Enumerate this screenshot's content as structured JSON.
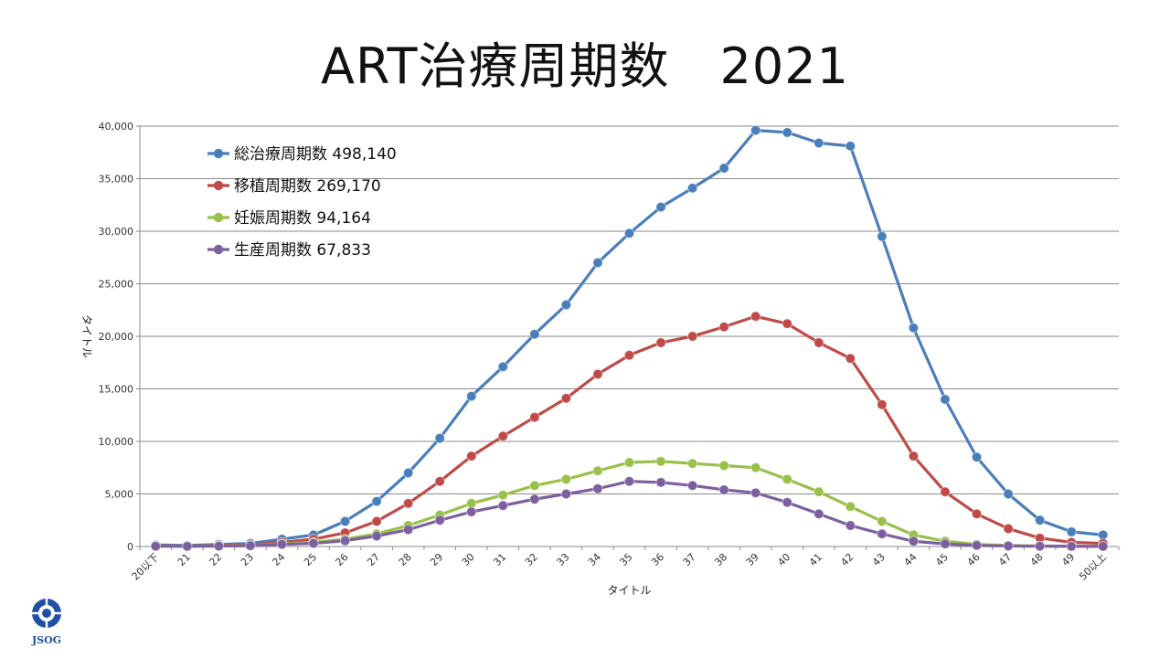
{
  "title": "ART治療周期数　2021",
  "logo_text": "JSOG",
  "chart_data": {
    "type": "line",
    "xlabel": "タイトル",
    "ylabel": "タイトル",
    "ylim": [
      0,
      40000
    ],
    "yticks": [
      0,
      5000,
      10000,
      15000,
      20000,
      25000,
      30000,
      35000,
      40000
    ],
    "ytick_labels": [
      "0",
      "5,000",
      "10,000",
      "15,000",
      "20,000",
      "25,000",
      "30,000",
      "35,000",
      "40,000"
    ],
    "grid": true,
    "legend_position": "top-left",
    "categories": [
      "20以下",
      "21",
      "22",
      "23",
      "24",
      "25",
      "26",
      "27",
      "28",
      "29",
      "30",
      "31",
      "32",
      "33",
      "34",
      "35",
      "36",
      "37",
      "38",
      "39",
      "40",
      "41",
      "42",
      "43",
      "44",
      "45",
      "46",
      "47",
      "48",
      "49",
      "50以上"
    ],
    "series": [
      {
        "name": "総治療周期数 498,140",
        "color": "#4a7ebb",
        "values": [
          150,
          100,
          200,
          300,
          700,
          1100,
          2400,
          4300,
          7000,
          10300,
          14300,
          17100,
          20200,
          23000,
          27000,
          29800,
          32300,
          34100,
          36000,
          39600,
          39400,
          38400,
          38100,
          29500,
          20800,
          14000,
          8500,
          5000,
          2500,
          1400,
          1100
        ]
      },
      {
        "name": "移植周期数 269,170",
        "color": "#be4b48",
        "values": [
          80,
          50,
          100,
          150,
          400,
          700,
          1300,
          2400,
          4100,
          6200,
          8600,
          10500,
          12300,
          14100,
          16400,
          18200,
          19400,
          20000,
          20900,
          21900,
          21200,
          19400,
          17900,
          13500,
          8600,
          5200,
          3100,
          1700,
          800,
          400,
          300
        ]
      },
      {
        "name": "妊娠周期数 94,164",
        "color": "#98c04b",
        "values": [
          50,
          30,
          60,
          100,
          250,
          400,
          700,
          1200,
          2000,
          3000,
          4100,
          4900,
          5800,
          6400,
          7200,
          8000,
          8100,
          7900,
          7700,
          7500,
          6400,
          5200,
          3800,
          2400,
          1100,
          500,
          200,
          100,
          50,
          30,
          20
        ]
      },
      {
        "name": "生産周期数 67,833",
        "color": "#7d5fa0",
        "values": [
          30,
          20,
          40,
          80,
          200,
          300,
          550,
          1000,
          1600,
          2500,
          3300,
          3900,
          4500,
          5000,
          5500,
          6200,
          6100,
          5800,
          5400,
          5100,
          4200,
          3100,
          2000,
          1200,
          500,
          250,
          100,
          50,
          30,
          20,
          10
        ]
      }
    ]
  }
}
